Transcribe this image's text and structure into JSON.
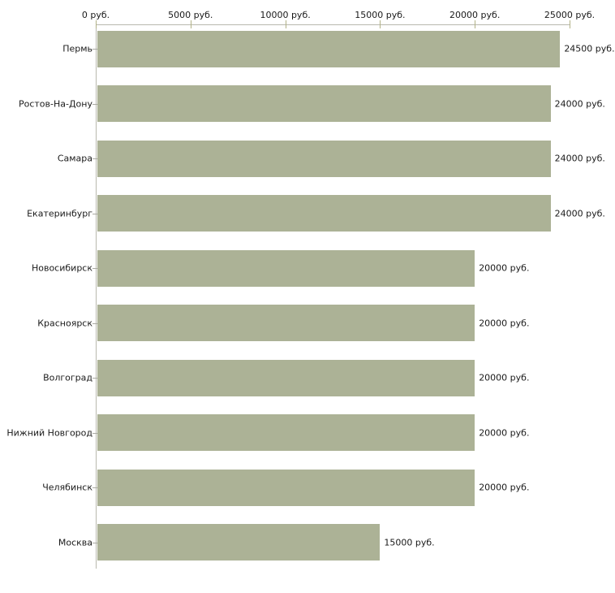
{
  "chart_data": {
    "type": "bar",
    "orientation": "horizontal",
    "title": "",
    "categories": [
      "Пермь",
      "Ростов-На-Дону",
      "Самара",
      "Екатеринбург",
      "Новосибирск",
      "Красноярск",
      "Волгоград",
      "Нижний Новгород",
      "Челябинск",
      "Москва"
    ],
    "values": [
      24500,
      24000,
      24000,
      24000,
      20000,
      20000,
      20000,
      20000,
      20000,
      15000
    ],
    "value_labels": [
      "24500 руб.",
      "24000 руб.",
      "24000 руб.",
      "24000 руб.",
      "20000 руб.",
      "20000 руб.",
      "20000 руб.",
      "20000 руб.",
      "20000 руб.",
      "15000 руб."
    ],
    "x_axis": {
      "position": "top",
      "min": 0,
      "max": 25000,
      "ticks": [
        0,
        5000,
        10000,
        15000,
        20000,
        25000
      ],
      "tick_labels": [
        "0 руб.",
        "5000 руб.",
        "10000 руб.",
        "15000 руб.",
        "20000 руб.",
        "25000 руб."
      ]
    },
    "unit": "руб.",
    "legend": "none",
    "grid": "off",
    "colors": {
      "bar_fill": "#acb296",
      "axis_line": "#b9b9ae",
      "axis_tick": "#b2b287",
      "text": "#1a1a1a",
      "background": "#ffffff"
    }
  }
}
